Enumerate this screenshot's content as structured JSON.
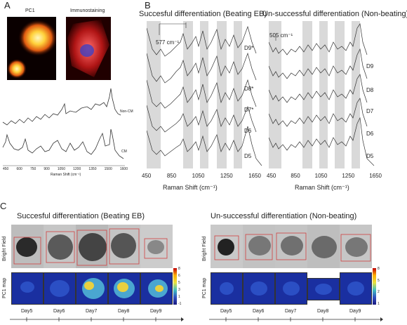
{
  "panel_a": {
    "letter": "A",
    "pc1_label": "PC1",
    "immuno_label": "Immunostaining",
    "trace_labels": [
      "Non-CM",
      "CM"
    ],
    "xaxis_title": "Raman Shift (cm⁻¹)",
    "ticks": [
      "450",
      "600",
      "750",
      "900",
      "1050",
      "1200",
      "1350",
      "1500",
      "1600"
    ]
  },
  "panel_b": {
    "letter": "B",
    "left_title": "Succesful differentiation (Beating EB)",
    "right_title": "Un-successful differentiation (Non-beating)",
    "left_annot": "577 cm⁻¹",
    "right_annot": "505 cm⁻¹",
    "left_days": [
      "D9*",
      "D8*",
      "D7*",
      "D6",
      "D5"
    ],
    "right_days": [
      "D9",
      "D8",
      "D7",
      "D6",
      "D5"
    ],
    "left_ticks": [
      "450",
      "850",
      "1050",
      "1250",
      "1650"
    ],
    "right_ticks": [
      "450",
      "850",
      "1050",
      "1250",
      "1650"
    ],
    "xaxis_title": "Raman Shift (cm⁻¹)"
  },
  "panel_c": {
    "letter": "C",
    "left_title": "Succesful differentiation (Beating EB)",
    "right_title": "Un-successful differentiation (Non-beating)",
    "row_bright": "Bright Field",
    "row_pc1": "PC1 map",
    "days": [
      "Day5",
      "Day6",
      "Day7",
      "Day8",
      "Day9"
    ],
    "colorbar_left": [
      "8",
      "6",
      "5",
      "3",
      "1",
      "-1"
    ],
    "colorbar_right": [
      "8",
      "5",
      "2",
      "1"
    ]
  },
  "colors": {
    "band": "#d9d9d9",
    "trace": "#333333",
    "map_bg": "#1a2fa0",
    "red_box": "#d04040"
  }
}
